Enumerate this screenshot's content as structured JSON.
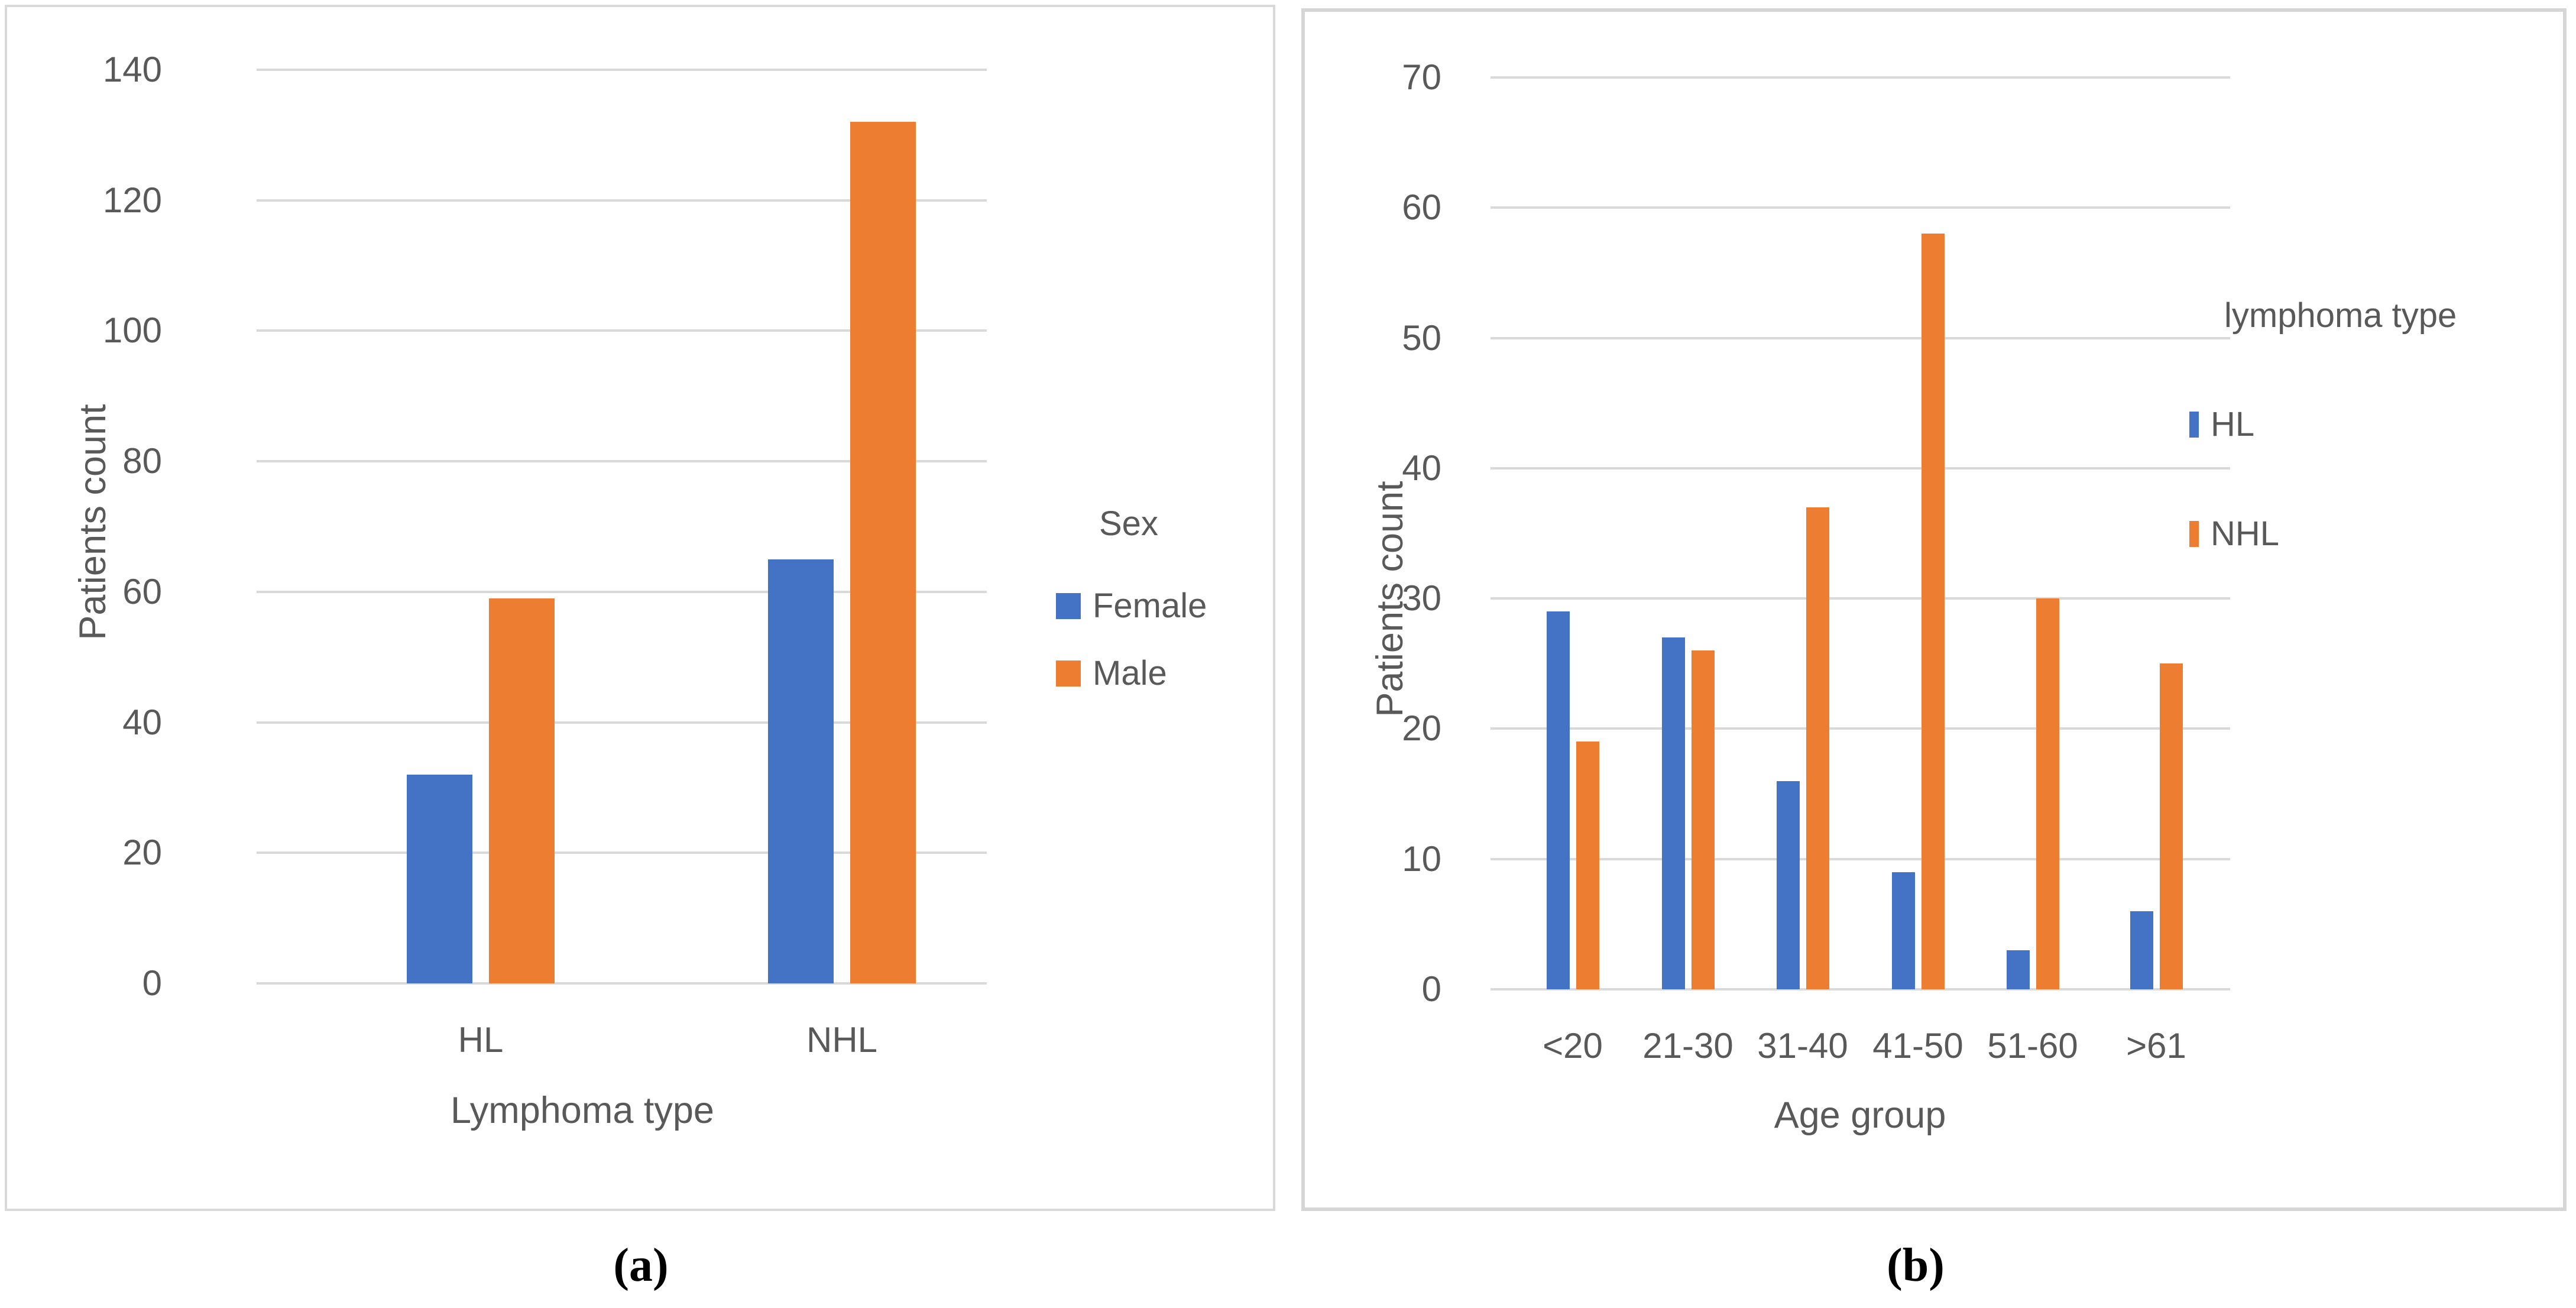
{
  "colors": {
    "series_blue": "#4472C4",
    "series_orange": "#ED7D31",
    "axis_text": "#595959",
    "gridline": "#D9D9D9",
    "panel_border": "#D9D9D9"
  },
  "captions": {
    "a": "(a)",
    "b": "(b)"
  },
  "chart_data": [
    {
      "id": "a",
      "type": "bar",
      "title": "",
      "categories": [
        "HL",
        "NHL"
      ],
      "series": [
        {
          "name": "Female",
          "color": "series_blue",
          "values": [
            32,
            65
          ]
        },
        {
          "name": "Male",
          "color": "series_orange",
          "values": [
            59,
            132
          ]
        }
      ],
      "xlabel": "Lymphoma type",
      "ylabel": "Patients count",
      "ylim": [
        0,
        140
      ],
      "ytick_step": 20,
      "grid": true,
      "legend_title": "Sex",
      "legend_position": "right"
    },
    {
      "id": "b",
      "type": "bar",
      "title": "",
      "categories": [
        "<20",
        "21-30",
        "31-40",
        "41-50",
        "51-60",
        ">61"
      ],
      "series": [
        {
          "name": "HL",
          "color": "series_blue",
          "values": [
            29,
            27,
            16,
            9,
            3,
            6
          ]
        },
        {
          "name": "NHL",
          "color": "series_orange",
          "values": [
            19,
            26,
            37,
            58,
            30,
            25
          ]
        }
      ],
      "xlabel": "Age group",
      "ylabel": "Patients count",
      "ylim": [
        0,
        70
      ],
      "ytick_step": 10,
      "grid": true,
      "legend_title": "lymphoma type",
      "legend_position": "right"
    }
  ]
}
